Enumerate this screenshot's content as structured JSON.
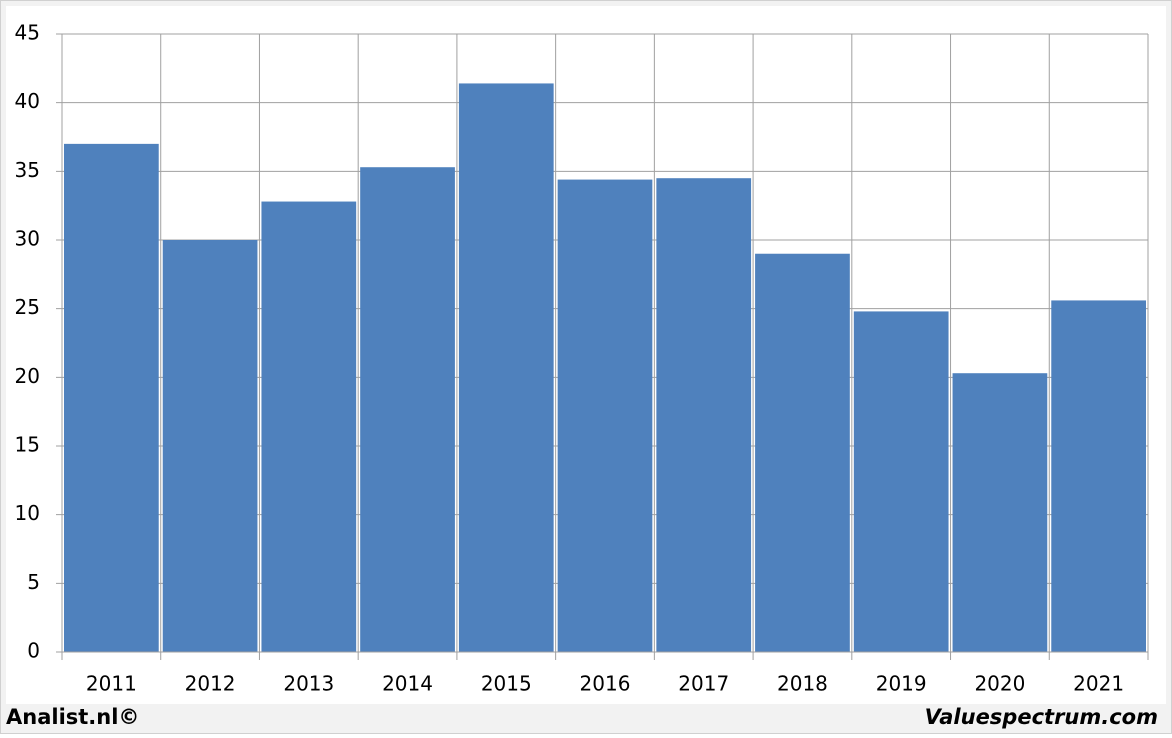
{
  "chart_data": {
    "type": "bar",
    "categories": [
      "2011",
      "2012",
      "2013",
      "2014",
      "2015",
      "2016",
      "2017",
      "2018",
      "2019",
      "2020",
      "2021"
    ],
    "values": [
      37.0,
      30.0,
      32.8,
      35.3,
      41.4,
      34.4,
      34.5,
      29.0,
      24.8,
      20.3,
      25.6
    ],
    "color": "#4f81bd",
    "ylim": [
      0,
      45
    ],
    "yticks": [
      0,
      5,
      10,
      15,
      20,
      25,
      30,
      35,
      40,
      45
    ],
    "grid": true,
    "footer_left": "Analist.nl©",
    "footer_right": "Valuespectrum.com"
  }
}
